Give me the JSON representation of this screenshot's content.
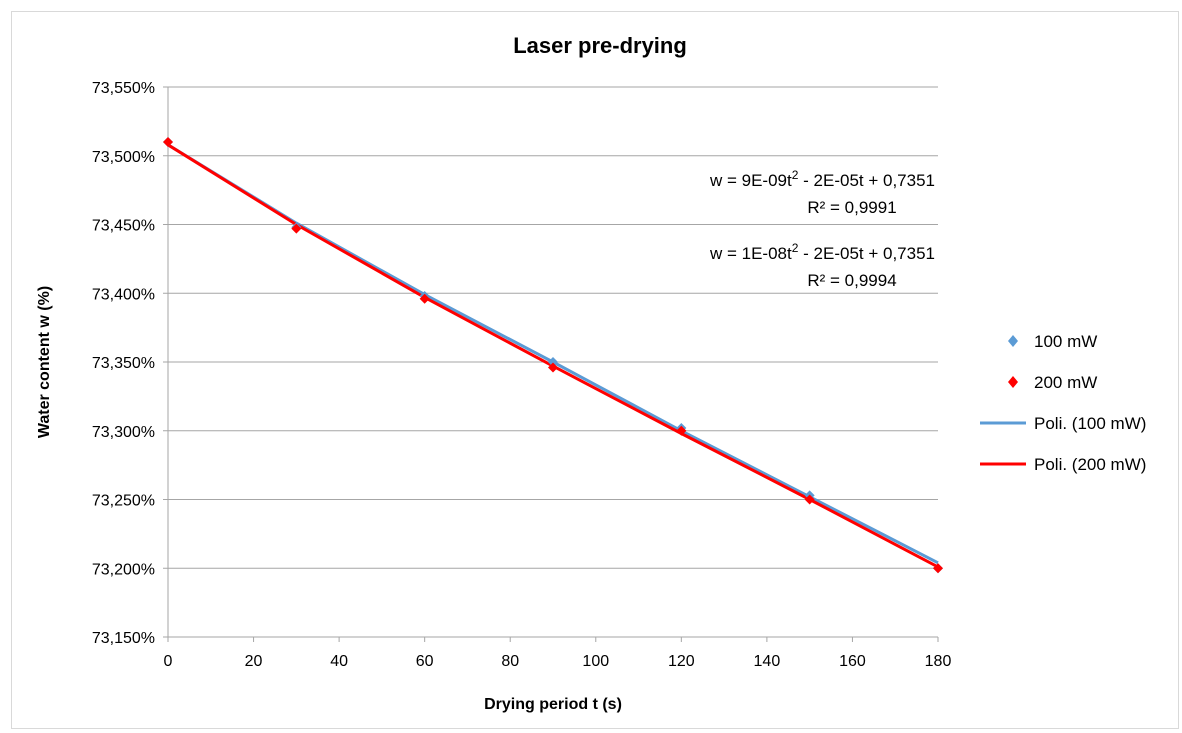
{
  "chart_data": {
    "type": "scatter",
    "title": "Laser pre-drying",
    "xlabel": "Drying period t  (s)",
    "ylabel": "Water content w  (%)",
    "xlim": [
      0,
      180
    ],
    "ylim": [
      73.15,
      73.55
    ],
    "x_ticks": [
      0,
      20,
      40,
      60,
      80,
      100,
      120,
      140,
      160,
      180
    ],
    "x_tick_labels": [
      "0",
      "20",
      "40",
      "60",
      "80",
      "100",
      "120",
      "140",
      "160",
      "180"
    ],
    "y_ticks": [
      73.15,
      73.2,
      73.25,
      73.3,
      73.35,
      73.4,
      73.45,
      73.5,
      73.55
    ],
    "y_tick_labels": [
      "73,150%",
      "73,200%",
      "73,250%",
      "73,300%",
      "73,350%",
      "73,400%",
      "73,450%",
      "73,500%",
      "73,550%"
    ],
    "grid": "horizontal",
    "legend_position": "right",
    "series": [
      {
        "name": "100 mW",
        "kind": "points",
        "marker": "diamond",
        "color": "#5b9bd5",
        "x": [
          0,
          30,
          60,
          90,
          120,
          150,
          180
        ],
        "y": [
          73.51,
          73.448,
          73.398,
          73.35,
          73.302,
          73.253,
          73.2
        ]
      },
      {
        "name": "200 mW",
        "kind": "points",
        "marker": "diamond",
        "color": "#ff0000",
        "x": [
          0,
          30,
          60,
          90,
          120,
          150,
          180
        ],
        "y": [
          73.51,
          73.447,
          73.396,
          73.346,
          73.3,
          73.25,
          73.2
        ]
      },
      {
        "name": "Poli. (100 mW)",
        "kind": "trendline",
        "color": "#5b9bd5",
        "x": [
          0,
          30,
          60,
          90,
          120,
          150,
          180
        ],
        "y": [
          73.508,
          73.451,
          73.399,
          73.35,
          73.3,
          73.252,
          73.204
        ]
      },
      {
        "name": "Poli. (200 mW)",
        "kind": "trendline",
        "color": "#ff0000",
        "x": [
          0,
          30,
          60,
          90,
          120,
          150,
          180
        ],
        "y": [
          73.508,
          73.45,
          73.397,
          73.347,
          73.298,
          73.25,
          73.201
        ]
      }
    ],
    "annotations": [
      {
        "eq_pre": "w = 9E-09t",
        "eq_exp": "2",
        "eq_post": " - 2E-05t + 0,7351",
        "r2": "R² = 0,9991"
      },
      {
        "eq_pre": "w = 1E-08t",
        "eq_exp": "2",
        "eq_post": " - 2E-05t + 0,7351",
        "r2": "R² = 0,9994"
      }
    ]
  }
}
